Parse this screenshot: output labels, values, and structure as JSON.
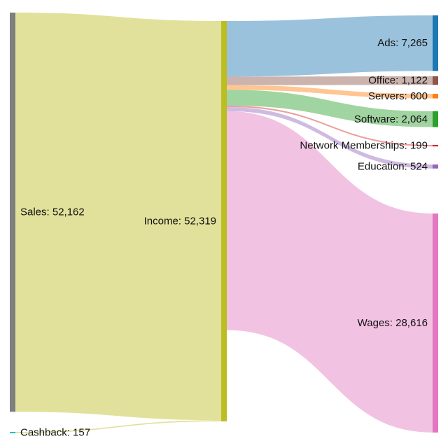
{
  "chart_data": {
    "type": "sankey",
    "nodes": [
      {
        "id": "sales",
        "label": "Sales: 52,162",
        "value": 52162,
        "color": "#7f7f7f"
      },
      {
        "id": "cashback",
        "label": "Cashback: 157",
        "value": 157,
        "color": "#17becf"
      },
      {
        "id": "income",
        "label": "Income: 52,319",
        "value": 52319,
        "color": "#bcbd22"
      },
      {
        "id": "ads",
        "label": "Ads: 7,265",
        "value": 7265,
        "color": "#1f77b4"
      },
      {
        "id": "office",
        "label": "Office: 1,122",
        "value": 1122,
        "color": "#8c564b"
      },
      {
        "id": "servers",
        "label": "Servers: 600",
        "value": 600,
        "color": "#ff7f0e"
      },
      {
        "id": "software",
        "label": "Software: 2,064",
        "value": 2064,
        "color": "#2ca02c"
      },
      {
        "id": "network",
        "label": "Network Memberships: 199",
        "value": 199,
        "color": "#d62728"
      },
      {
        "id": "education",
        "label": "Education: 524",
        "value": 524,
        "color": "#9467bd"
      },
      {
        "id": "wages",
        "label": "Wages: 28,616",
        "value": 28616,
        "color": "#e377c2"
      }
    ],
    "links": [
      {
        "source": "sales",
        "target": "income",
        "value": 52162
      },
      {
        "source": "cashback",
        "target": "income",
        "value": 157
      },
      {
        "source": "income",
        "target": "ads",
        "value": 7265
      },
      {
        "source": "income",
        "target": "office",
        "value": 1122
      },
      {
        "source": "income",
        "target": "servers",
        "value": 600
      },
      {
        "source": "income",
        "target": "software",
        "value": 2064
      },
      {
        "source": "income",
        "target": "network",
        "value": 199
      },
      {
        "source": "income",
        "target": "education",
        "value": 524
      },
      {
        "source": "income",
        "target": "wages",
        "value": 28616
      }
    ]
  }
}
